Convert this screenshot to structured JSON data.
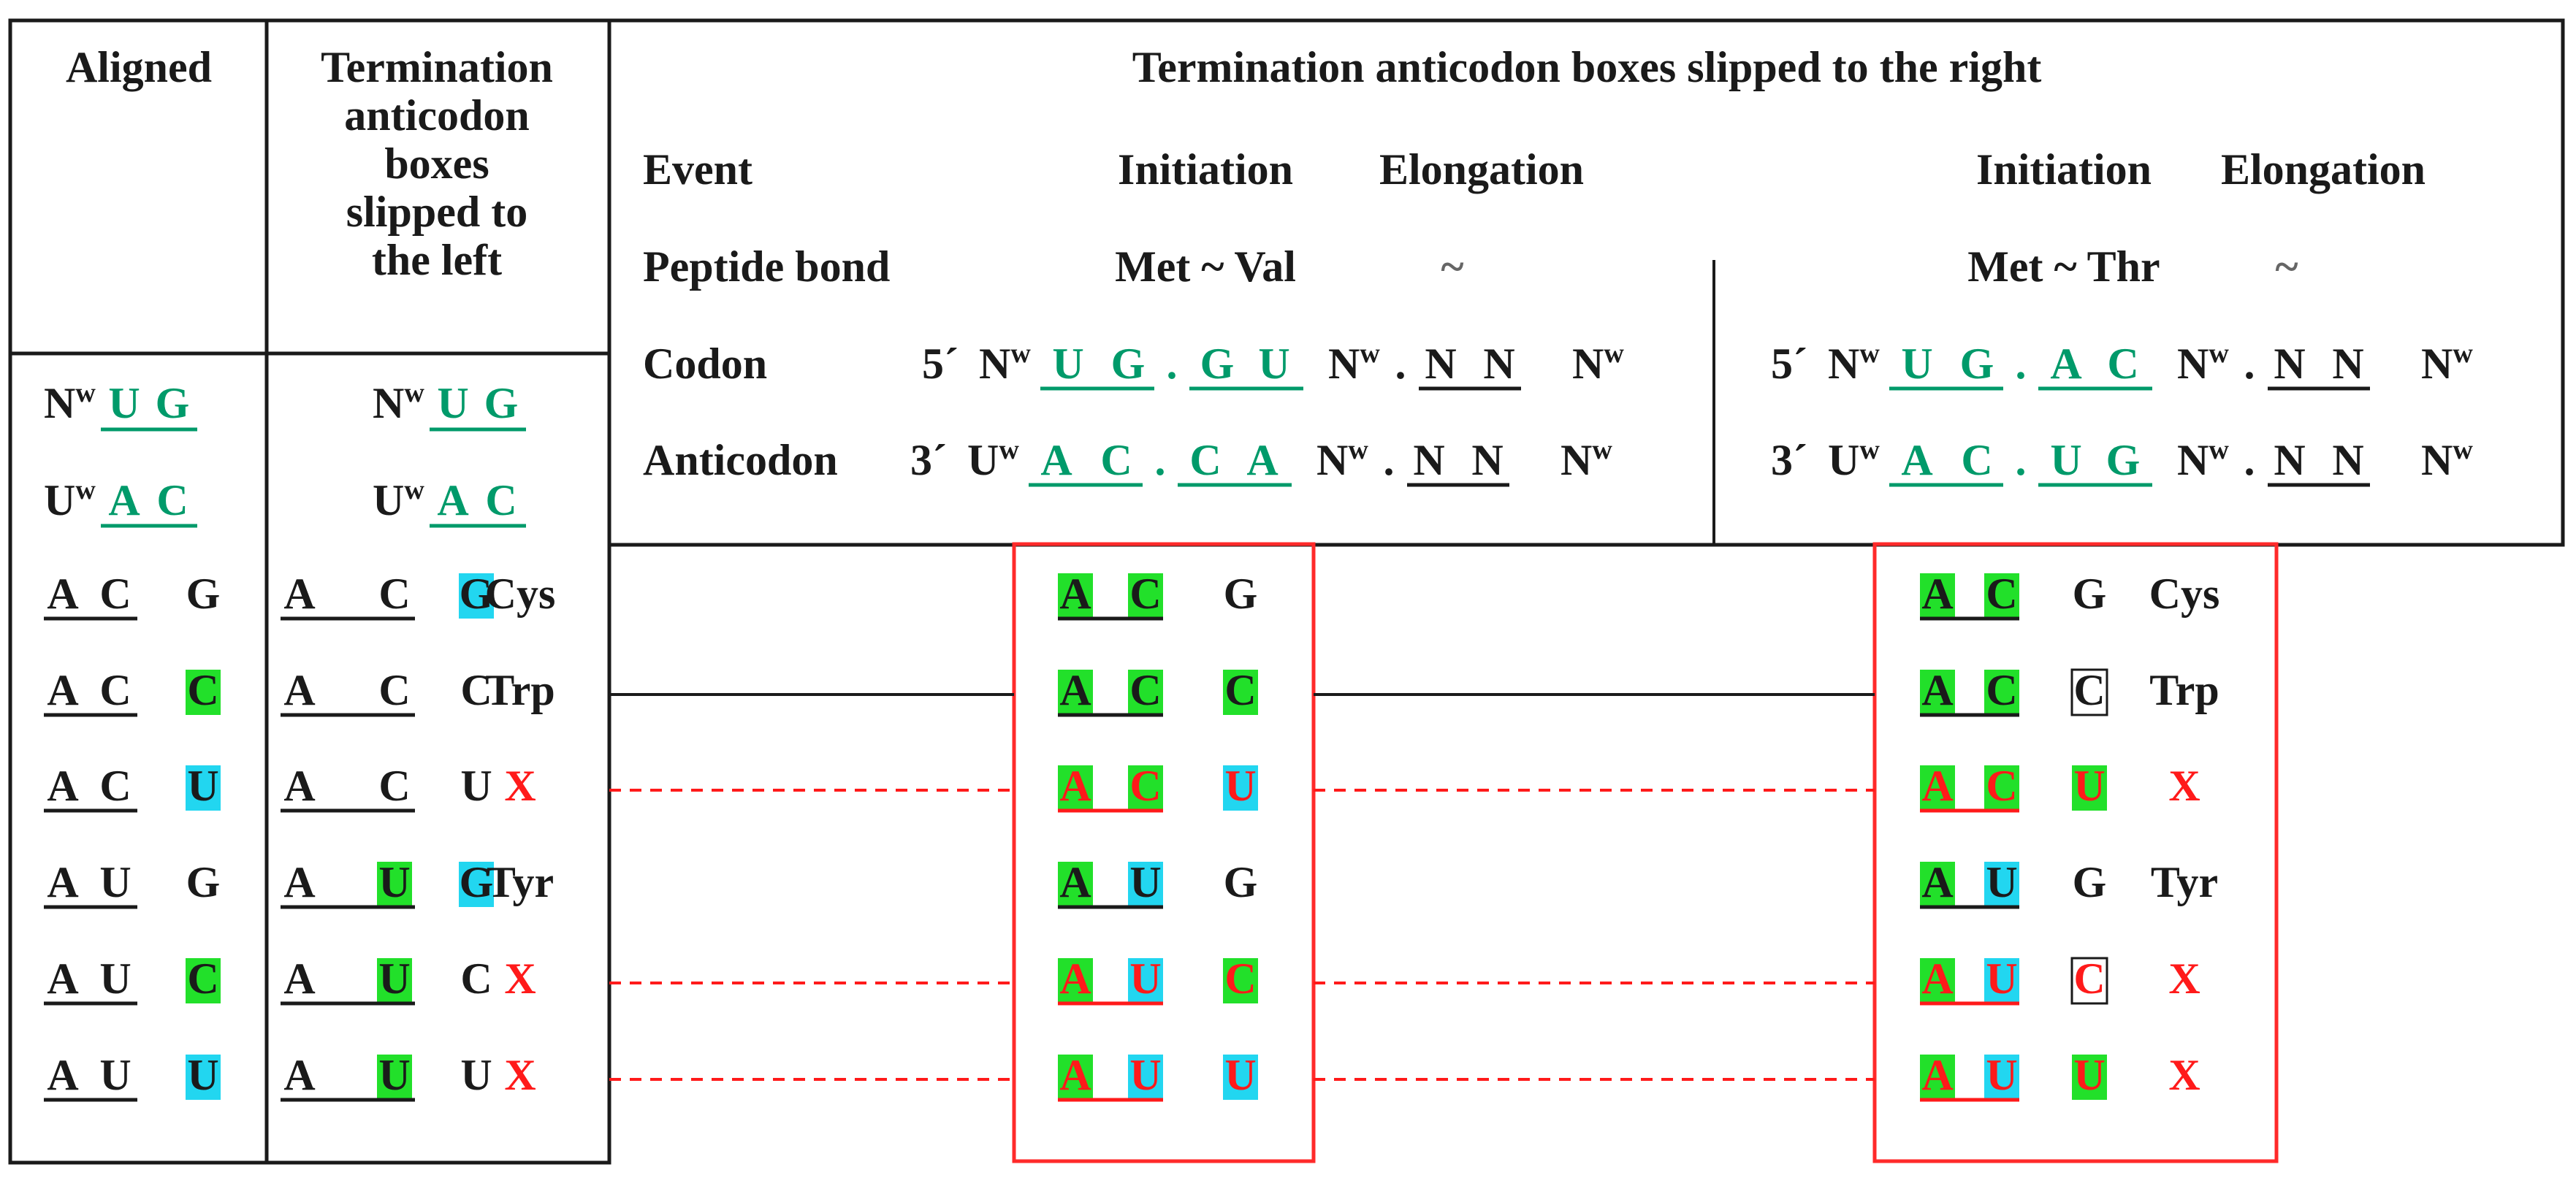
{
  "colors": {
    "text": "#1a1a1a",
    "teal": "#009a6a",
    "green_box": "#22e02a",
    "cyan_box": "#22d6f0",
    "red": "#ff1a1a",
    "border": "#1a1a1a",
    "red_box": "#ff2a2a"
  },
  "headers": {
    "aligned": "Aligned",
    "left": [
      "Termination",
      "anticodon",
      "boxes",
      "slipped to",
      "the left"
    ],
    "right": "Termination anticodon boxes slipped to the right"
  },
  "events": {
    "event_label": "Event",
    "initiation": "Initiation",
    "elongation": "Elongation",
    "peptide_label": "Peptide bond",
    "codon_label": "Codon",
    "anticodon_label": "Anticodon",
    "met_val": "Met ~ Val",
    "met_thr": "Met ~ Thr",
    "tilde": "~",
    "five_prime": "5´",
    "three_prime": "3´",
    "Nw": "Nw",
    "Uw": "Uw",
    "dot": ".",
    "N": "N",
    "panel1_codon": [
      "U",
      "G",
      "G",
      "U"
    ],
    "panel1_anticodon": [
      "A",
      "C",
      "C",
      "A"
    ],
    "panel2_codon": [
      "U",
      "G",
      "A",
      "C"
    ],
    "panel2_anticodon": [
      "A",
      "C",
      "U",
      "G"
    ]
  },
  "left_top": {
    "nw_row": [
      "Nw",
      "U",
      "G"
    ],
    "uw_row": [
      "Uw",
      "A",
      "C"
    ]
  },
  "rows": [
    {
      "aligned": [
        "A",
        "C",
        "G"
      ],
      "aligned_box": "none",
      "left_hl": [
        "none",
        "none",
        "cyan"
      ],
      "left_third": "G",
      "amino": "Cys",
      "stop": false,
      "mid_hl": [
        "green",
        "green",
        "none"
      ],
      "mid_third": "G",
      "right_hl": [
        "green",
        "green",
        "none"
      ],
      "right_third": "G"
    },
    {
      "aligned": [
        "A",
        "C",
        "C"
      ],
      "aligned_box": "green",
      "left_hl": [
        "none",
        "none",
        "none"
      ],
      "left_third": "C",
      "amino": "Trp",
      "stop": false,
      "mid_hl": [
        "green",
        "green",
        "green"
      ],
      "mid_third": "C",
      "right_hl": [
        "green",
        "green",
        "outline"
      ],
      "right_third": "C"
    },
    {
      "aligned": [
        "A",
        "C",
        "U"
      ],
      "aligned_box": "cyan",
      "left_hl": [
        "none",
        "none",
        "none"
      ],
      "left_third": "U",
      "amino": "X",
      "stop": true,
      "mid_hl": [
        "green",
        "green",
        "cyan"
      ],
      "mid_third": "U",
      "right_hl": [
        "green",
        "green",
        "green"
      ],
      "right_third": "U"
    },
    {
      "aligned": [
        "A",
        "U",
        "G"
      ],
      "aligned_box": "none",
      "left_hl": [
        "none",
        "green",
        "cyan"
      ],
      "left_third": "G",
      "amino": "Tyr",
      "stop": false,
      "mid_hl": [
        "green",
        "cyan",
        "none"
      ],
      "mid_third": "G",
      "right_hl": [
        "green",
        "cyan",
        "none"
      ],
      "right_third": "G"
    },
    {
      "aligned": [
        "A",
        "U",
        "C"
      ],
      "aligned_box": "green",
      "left_hl": [
        "none",
        "green",
        "none"
      ],
      "left_third": "C",
      "amino": "X",
      "stop": true,
      "mid_hl": [
        "green",
        "cyan",
        "green"
      ],
      "mid_third": "C",
      "right_hl": [
        "green",
        "cyan",
        "outline"
      ],
      "right_third": "C"
    },
    {
      "aligned": [
        "A",
        "U",
        "U"
      ],
      "aligned_box": "cyan",
      "left_hl": [
        "none",
        "green",
        "none"
      ],
      "left_third": "U",
      "amino": "X",
      "stop": true,
      "mid_hl": [
        "green",
        "cyan",
        "cyan"
      ],
      "mid_third": "U",
      "right_hl": [
        "green",
        "cyan",
        "green"
      ],
      "right_third": "U"
    }
  ]
}
